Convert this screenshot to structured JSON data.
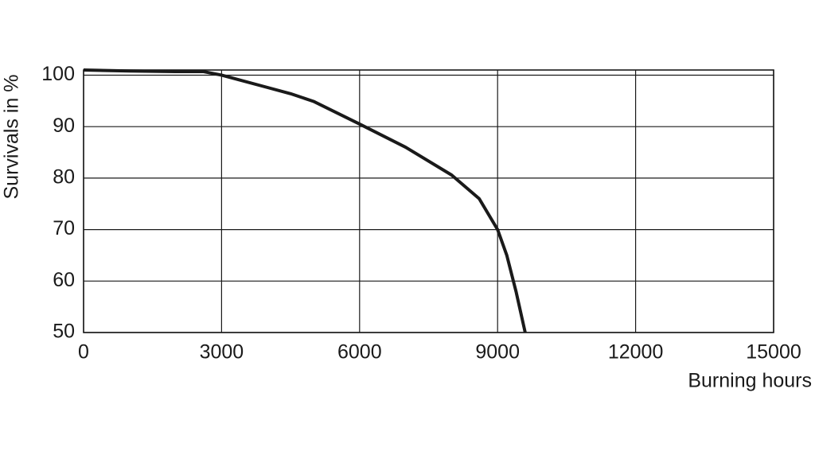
{
  "chart_data": {
    "type": "line",
    "x_label": "Burning hours",
    "y_label": "Survivals in %",
    "x": [
      0,
      1000,
      2000,
      2600,
      3000,
      4000,
      4500,
      5000,
      6000,
      7000,
      8000,
      8600,
      9000,
      9200,
      9400,
      9600
    ],
    "series": [
      {
        "name": "Survivals",
        "color": "#1a1a1a",
        "values": [
          101,
          100.8,
          100.7,
          100.7,
          100,
          97.6,
          96.4,
          94.9,
          90.5,
          86,
          80.6,
          76,
          70,
          65,
          58,
          50
        ]
      }
    ],
    "xlim": [
      0,
      15000
    ],
    "xticks": [
      0,
      3000,
      6000,
      9000,
      12000,
      15000
    ],
    "ylim": [
      50,
      101
    ],
    "yticks": [
      50,
      60,
      70,
      80,
      90,
      100
    ],
    "grid": true
  }
}
